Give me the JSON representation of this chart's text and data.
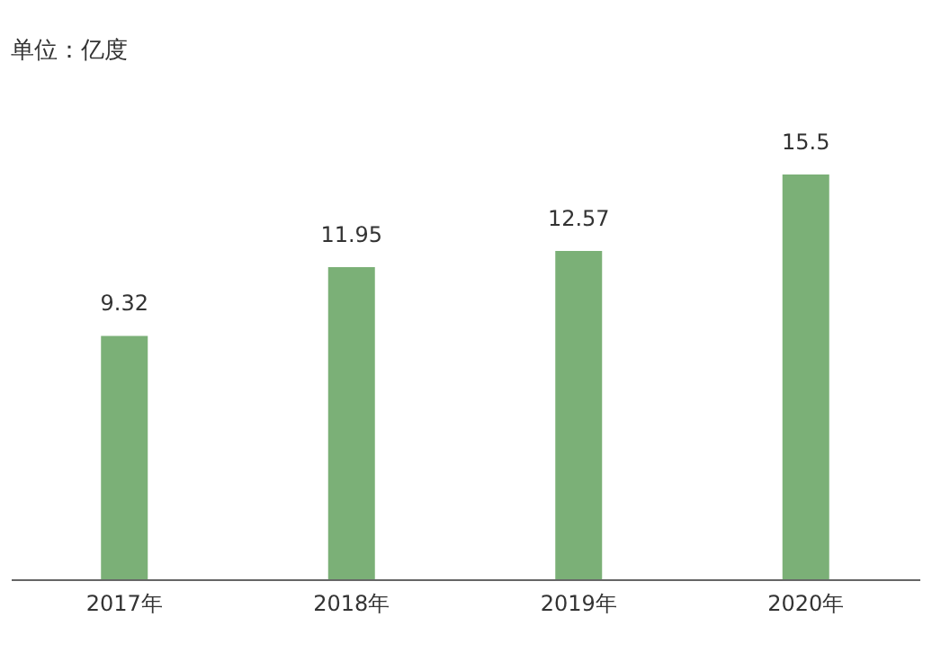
{
  "chart_data": {
    "type": "bar",
    "title": "单位：亿度",
    "categories": [
      "2017年",
      "2018年",
      "2019年",
      "2020年"
    ],
    "values": [
      9.32,
      11.95,
      12.57,
      15.5
    ],
    "color": "#7bb077",
    "data_labels": true,
    "grid": false
  }
}
